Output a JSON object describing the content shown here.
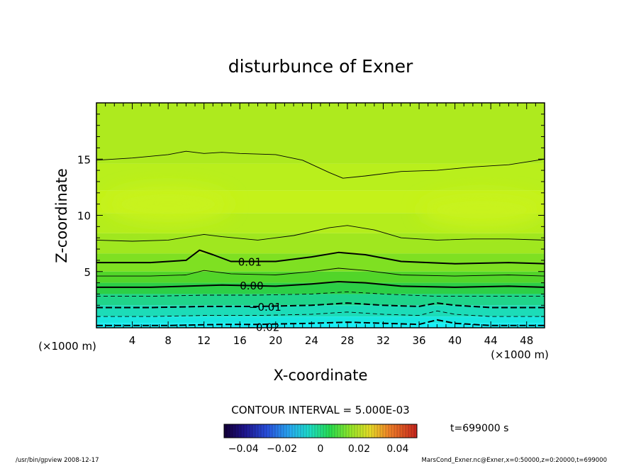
{
  "chart_data": {
    "type": "contour",
    "title": "disturbunce of Exner",
    "xlabel": "X-coordinate",
    "ylabel": "Z-coordinate",
    "x_unit": "(×1000 m)",
    "y_unit": "(×1000 m)",
    "xlim": [
      0,
      50
    ],
    "ylim": [
      0,
      20
    ],
    "x_ticks": [
      4,
      8,
      12,
      16,
      20,
      24,
      28,
      32,
      36,
      40,
      44,
      48
    ],
    "y_ticks": [
      5,
      10,
      15
    ],
    "contour_interval_label": "CONTOUR INTERVAL = 5.000E-03",
    "contour_interval": 0.005,
    "time_label": "t=699000 s",
    "colorbar": {
      "range": [
        -0.05,
        0.05
      ],
      "ticks": [
        -0.04,
        -0.02,
        0,
        0.02,
        0.04
      ],
      "tick_labels": [
        "−0.04",
        "−0.02",
        "0",
        "0.02",
        "0.04"
      ]
    },
    "contour_labels": [
      {
        "text": "0.01",
        "value": 0.01,
        "x": 15.8,
        "z": 5.9
      },
      {
        "text": "0.00",
        "value": 0.0,
        "x": 16.0,
        "z": 3.8
      },
      {
        "text": "−0.01",
        "value": -0.01,
        "x": 17.0,
        "z": 1.9
      },
      {
        "text": "−0.02",
        "value": -0.02,
        "x": 16.8,
        "z": 0.1
      }
    ],
    "contours": [
      {
        "value": 0.02,
        "style": "solid",
        "points": [
          [
            0,
            14.9
          ],
          [
            4,
            15.1
          ],
          [
            8,
            15.4
          ],
          [
            10,
            15.7
          ],
          [
            12,
            15.5
          ],
          [
            14,
            15.6
          ],
          [
            16,
            15.5
          ],
          [
            20,
            15.4
          ],
          [
            23,
            14.9
          ],
          [
            26,
            13.8
          ],
          [
            27.5,
            13.3
          ],
          [
            30,
            13.5
          ],
          [
            34,
            13.9
          ],
          [
            38,
            14.0
          ],
          [
            42,
            14.3
          ],
          [
            46,
            14.5
          ],
          [
            50,
            15.0
          ]
        ]
      },
      {
        "value": 0.015,
        "style": "solid",
        "points": [
          [
            0,
            7.8
          ],
          [
            4,
            7.7
          ],
          [
            8,
            7.8
          ],
          [
            12,
            8.3
          ],
          [
            14,
            8.1
          ],
          [
            18,
            7.8
          ],
          [
            22,
            8.2
          ],
          [
            26,
            8.9
          ],
          [
            28,
            9.1
          ],
          [
            31,
            8.7
          ],
          [
            34,
            8.0
          ],
          [
            38,
            7.8
          ],
          [
            42,
            7.9
          ],
          [
            46,
            7.9
          ],
          [
            50,
            7.8
          ]
        ]
      },
      {
        "value": 0.01,
        "style": "bold",
        "points": [
          [
            0,
            5.8
          ],
          [
            6,
            5.8
          ],
          [
            10,
            6.0
          ],
          [
            11.5,
            6.9
          ],
          [
            13,
            6.5
          ],
          [
            15,
            5.9
          ],
          [
            20,
            5.9
          ],
          [
            24,
            6.3
          ],
          [
            27,
            6.7
          ],
          [
            30,
            6.5
          ],
          [
            34,
            5.9
          ],
          [
            40,
            5.7
          ],
          [
            46,
            5.8
          ],
          [
            50,
            5.7
          ]
        ]
      },
      {
        "value": 0.005,
        "style": "solid",
        "points": [
          [
            0,
            4.6
          ],
          [
            6,
            4.6
          ],
          [
            10,
            4.7
          ],
          [
            12,
            5.1
          ],
          [
            15,
            4.8
          ],
          [
            20,
            4.7
          ],
          [
            24,
            5.0
          ],
          [
            27,
            5.3
          ],
          [
            30,
            5.1
          ],
          [
            34,
            4.7
          ],
          [
            40,
            4.6
          ],
          [
            46,
            4.7
          ],
          [
            50,
            4.6
          ]
        ]
      },
      {
        "value": 0.0,
        "style": "bold",
        "points": [
          [
            0,
            3.6
          ],
          [
            6,
            3.6
          ],
          [
            10,
            3.7
          ],
          [
            14,
            3.8
          ],
          [
            20,
            3.7
          ],
          [
            24,
            3.9
          ],
          [
            27,
            4.1
          ],
          [
            30,
            4.0
          ],
          [
            34,
            3.7
          ],
          [
            40,
            3.6
          ],
          [
            46,
            3.7
          ],
          [
            50,
            3.6
          ]
        ]
      },
      {
        "value": -0.005,
        "style": "dashed",
        "points": [
          [
            0,
            2.8
          ],
          [
            6,
            2.8
          ],
          [
            12,
            2.9
          ],
          [
            18,
            2.9
          ],
          [
            24,
            3.0
          ],
          [
            28,
            3.2
          ],
          [
            32,
            3.0
          ],
          [
            38,
            2.8
          ],
          [
            44,
            2.8
          ],
          [
            50,
            2.8
          ]
        ]
      },
      {
        "value": -0.01,
        "style": "dashed-bold",
        "points": [
          [
            0,
            1.8
          ],
          [
            6,
            1.8
          ],
          [
            12,
            1.9
          ],
          [
            18,
            1.9
          ],
          [
            24,
            2.0
          ],
          [
            28,
            2.2
          ],
          [
            32,
            2.0
          ],
          [
            36,
            1.9
          ],
          [
            38,
            2.2
          ],
          [
            40,
            2.0
          ],
          [
            44,
            1.8
          ],
          [
            50,
            1.8
          ]
        ]
      },
      {
        "value": -0.015,
        "style": "dashed",
        "points": [
          [
            0,
            1.0
          ],
          [
            6,
            1.0
          ],
          [
            12,
            1.1
          ],
          [
            18,
            1.1
          ],
          [
            24,
            1.2
          ],
          [
            28,
            1.4
          ],
          [
            32,
            1.2
          ],
          [
            36,
            1.1
          ],
          [
            38,
            1.5
          ],
          [
            40,
            1.2
          ],
          [
            44,
            1.0
          ],
          [
            50,
            1.0
          ]
        ]
      },
      {
        "value": -0.02,
        "style": "dashed-bold",
        "points": [
          [
            0,
            0.2
          ],
          [
            8,
            0.2
          ],
          [
            14,
            0.3
          ],
          [
            18,
            0.3
          ],
          [
            24,
            0.4
          ],
          [
            28,
            0.5
          ],
          [
            32,
            0.4
          ],
          [
            36,
            0.3
          ],
          [
            38,
            0.7
          ],
          [
            40,
            0.4
          ],
          [
            44,
            0.2
          ],
          [
            50,
            0.2
          ]
        ]
      }
    ],
    "fill_bands": [
      {
        "top": 20,
        "color": "#aeea1e"
      },
      {
        "top": 14.6,
        "color": "#b9ef1c"
      },
      {
        "top": 12.2,
        "color": "#c4f21a"
      },
      {
        "top": 10.2,
        "color": "#b4ed1c"
      },
      {
        "top": 8.4,
        "color": "#a0e71f"
      },
      {
        "top": 6.6,
        "color": "#7fe022"
      },
      {
        "top": 5.0,
        "color": "#52d529"
      },
      {
        "top": 4.0,
        "color": "#2ccf46"
      },
      {
        "top": 3.0,
        "color": "#1fd48a"
      },
      {
        "top": 2.0,
        "color": "#1cdcb8"
      },
      {
        "top": 1.0,
        "color": "#19e7df"
      },
      {
        "top": 0.4,
        "color": "#18f0f8"
      }
    ],
    "light_patches": [
      {
        "cx": 8,
        "cz": 11,
        "rx": 7,
        "rz": 1.6,
        "color": "#c8f31b"
      },
      {
        "cx": 43,
        "cz": 10.5,
        "rx": 7,
        "rz": 1.5,
        "color": "#c8f31b"
      }
    ]
  },
  "footer": {
    "left": "/usr/bin/gpview   2008-12-17",
    "right": "MarsCond_Exner.nc@Exner,x=0:50000,z=0:20000,t=699000"
  },
  "colors": {
    "axis": "#000000",
    "background": "#ffffff"
  }
}
